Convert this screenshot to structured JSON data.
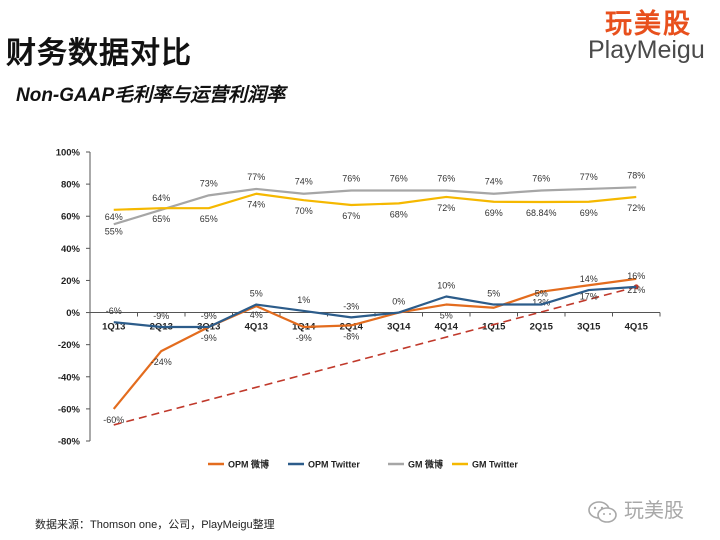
{
  "header": {
    "title": "财务数据对比",
    "subtitle": "Non-GAAP毛利率与运营利润率"
  },
  "logo": {
    "cn": "玩美股",
    "en": "PlayMeigu"
  },
  "footer": {
    "source": "数据来源：Thomson one，公司，PlayMeigu整理",
    "wechat_label": "玩美股",
    "wechat_icon": "wechat-icon"
  },
  "chart_data": {
    "type": "line",
    "categories": [
      "1Q13",
      "2Q13",
      "3Q13",
      "4Q13",
      "1Q14",
      "2Q14",
      "3Q14",
      "4Q14",
      "1Q15",
      "2Q15",
      "3Q15",
      "4Q15"
    ],
    "ylim": [
      -80,
      100
    ],
    "yticks": [
      100,
      80,
      60,
      40,
      20,
      0,
      -20,
      -40,
      -60,
      -80
    ],
    "ytick_labels": [
      "100%",
      "80%",
      "60%",
      "40%",
      "20%",
      "0%",
      "-20%",
      "-40%",
      "-60%",
      "-80%"
    ],
    "grid": false,
    "legend_position": "bottom",
    "series": [
      {
        "name": "OPM 微博",
        "color": "#e36c1e",
        "values": [
          -60,
          -24,
          -9,
          4,
          -9,
          -8,
          0,
          5,
          3,
          13,
          17,
          21
        ],
        "labels": [
          "-60%",
          "-24%",
          "-9%",
          "4%",
          "-9%",
          "-8%",
          "",
          "5%",
          "",
          "13%",
          "17%",
          "21%"
        ]
      },
      {
        "name": "OPM Twitter",
        "color": "#2c5c8a",
        "values": [
          -6,
          -9,
          -9,
          5,
          1,
          -3,
          0,
          10,
          5,
          5,
          14,
          16
        ],
        "labels": [
          "-6%",
          "-9%",
          "-9%",
          "5%",
          "1%",
          "-3%",
          "0%",
          "10%",
          "5%",
          "5%",
          "14%",
          "16%"
        ]
      },
      {
        "name": "GM 微博",
        "color": "#a6a6a6",
        "values": [
          55,
          64,
          73,
          77,
          74,
          76,
          76,
          76,
          74,
          76,
          77,
          78
        ],
        "labels": [
          "55%",
          "64%",
          "73%",
          "77%",
          "74%",
          "76%",
          "76%",
          "76%",
          "74%",
          "76%",
          "77%",
          "78%"
        ]
      },
      {
        "name": "GM Twitter",
        "color": "#f5b800",
        "values": [
          64,
          65,
          65,
          74,
          70,
          67,
          68,
          72,
          69,
          68.84,
          69,
          72
        ],
        "labels": [
          "64%",
          "65%",
          "65%",
          "74%",
          "70%",
          "67%",
          "68%",
          "72%",
          "69%",
          "68.84%",
          "69%",
          "72%"
        ]
      }
    ],
    "trend_line": {
      "from": [
        0,
        -70
      ],
      "to": [
        11,
        16
      ],
      "color": "#c0392b",
      "style": "dashed"
    }
  }
}
